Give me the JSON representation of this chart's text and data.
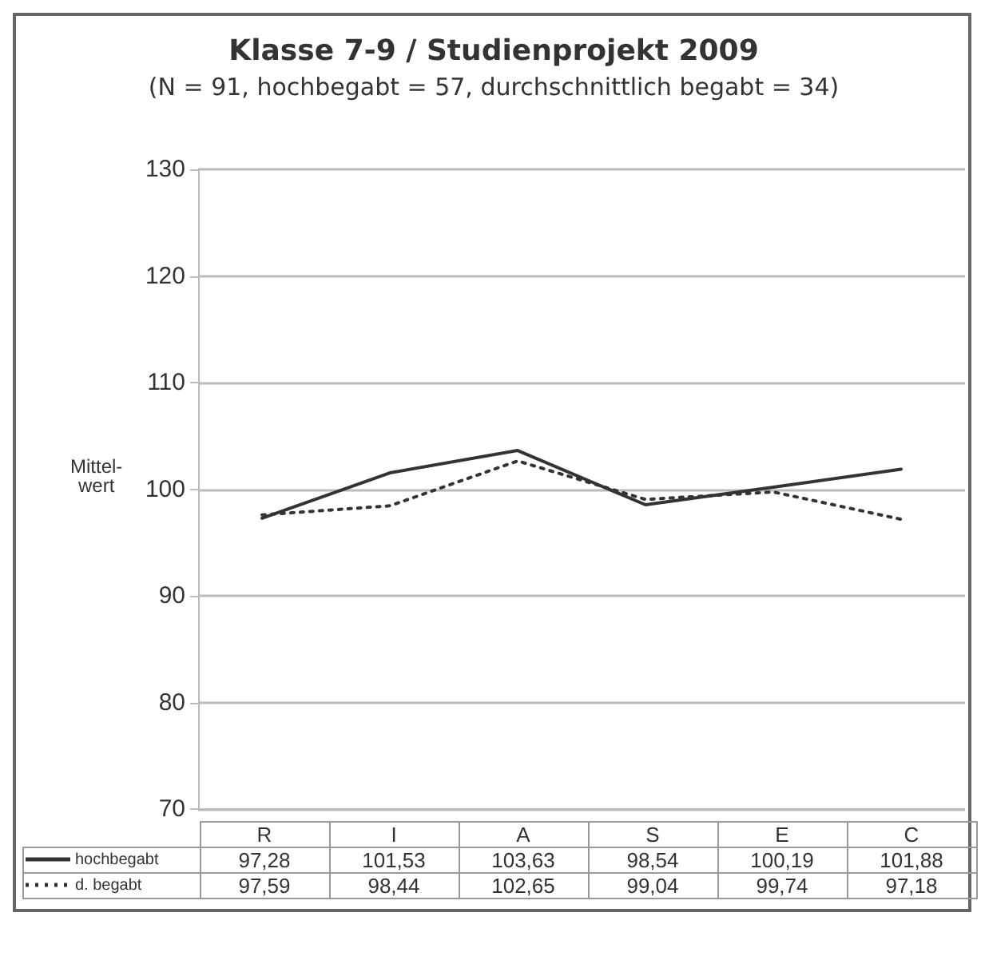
{
  "chart_data": {
    "type": "line",
    "title": "Klasse 7-9 / Studienprojekt 2009",
    "subtitle": "(N = 91, hochbegabt = 57, durchschnittlich begabt = 34)",
    "ylabel": "Mittel-\nwert",
    "categories": [
      "R",
      "I",
      "A",
      "S",
      "E",
      "C"
    ],
    "series": [
      {
        "name": "hochbegabt",
        "color": "#333333",
        "line_style": "solid",
        "values": [
          97.28,
          101.53,
          103.63,
          98.54,
          100.19,
          101.88
        ],
        "value_labels": [
          "97,28",
          "101,53",
          "103,63",
          "98,54",
          "100,19",
          "101,88"
        ]
      },
      {
        "name": "d. begabt",
        "color": "#333333",
        "line_style": "dotted",
        "values": [
          97.59,
          98.44,
          102.65,
          99.04,
          99.74,
          97.18
        ],
        "value_labels": [
          "97,59",
          "98,44",
          "102,65",
          "99,04",
          "99,74",
          "97,18"
        ]
      }
    ],
    "ylim": [
      70,
      130
    ],
    "yticks": [
      70,
      80,
      90,
      100,
      110,
      120,
      130
    ],
    "grid": "y",
    "legend": "bottom left",
    "marker": "none"
  }
}
